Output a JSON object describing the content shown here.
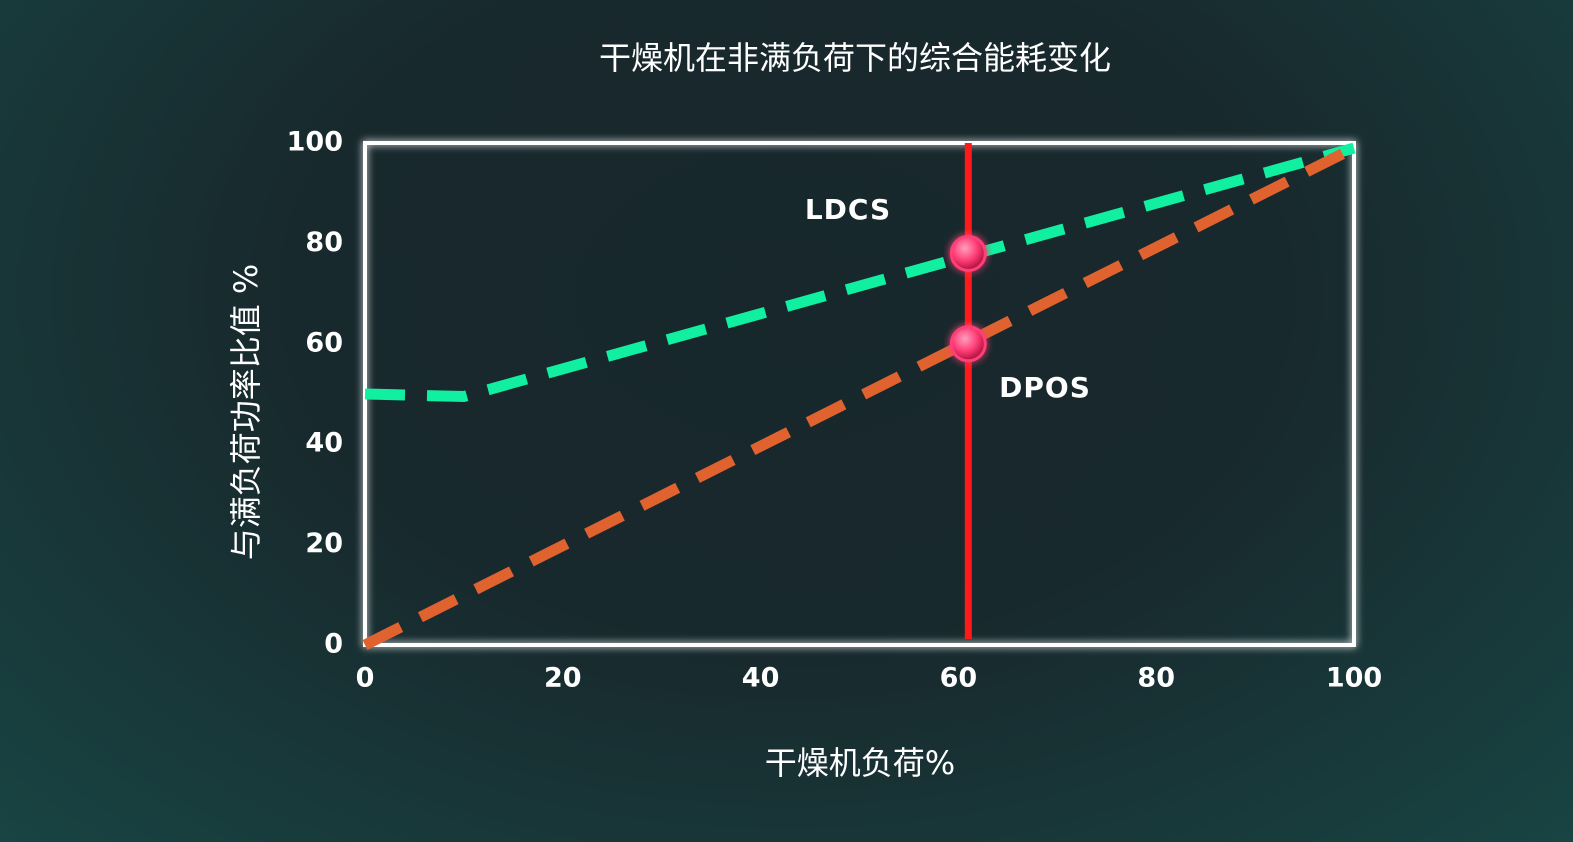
{
  "chart_data": {
    "type": "line",
    "title": "干燥机在非满负荷下的综合能耗变化",
    "x_label": "干燥机负荷%",
    "y_label": "与满负荷功率比值 %",
    "series": [
      {
        "name": "LDCS",
        "color": "#10f0a0",
        "x": [
          0,
          10,
          100
        ],
        "values": [
          50,
          49.5,
          99
        ]
      },
      {
        "name": "DPOS",
        "color": "#e0622e",
        "x": [
          0,
          100
        ],
        "values": [
          0,
          99
        ]
      }
    ],
    "reference_line": {
      "x": 61,
      "color": "#ff1a1a"
    },
    "highlight_points": {
      "color": "#ff3f78",
      "x": [
        61,
        61
      ],
      "values": [
        78,
        60
      ]
    },
    "xlim": [
      0,
      100
    ],
    "xticks": [
      0,
      20,
      40,
      60,
      80,
      100
    ],
    "ylim": [
      0,
      100
    ],
    "yticks": [
      0,
      20,
      40,
      60,
      80,
      100
    ],
    "grid": true
  }
}
